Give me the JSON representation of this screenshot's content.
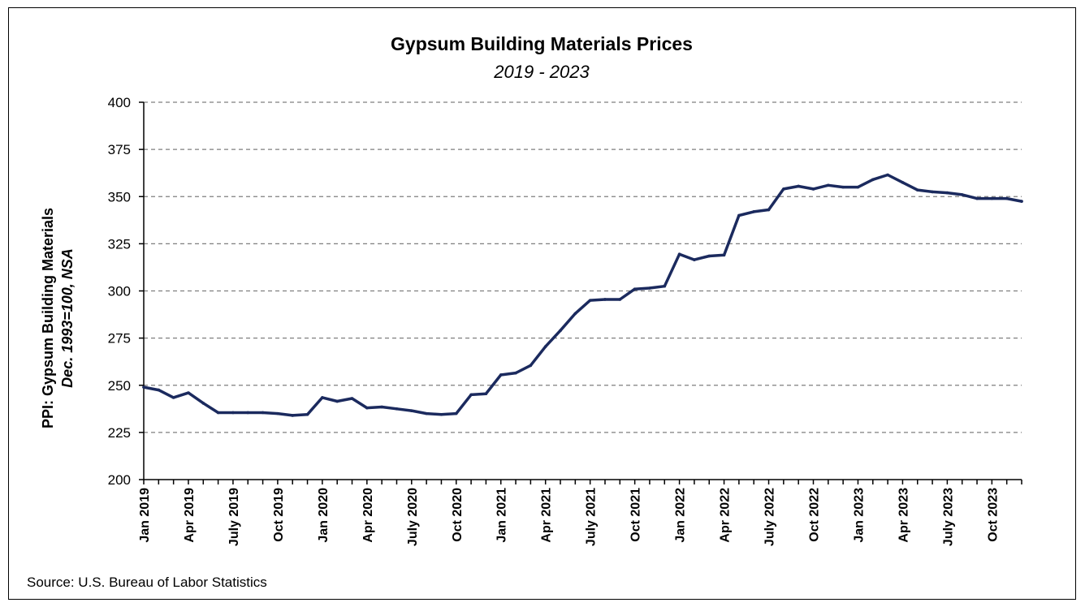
{
  "chart_data": {
    "type": "line",
    "title": "Gypsum Building Materials Prices",
    "subtitle": "2019 - 2023",
    "ylabel": "PPI: Gypsum Building Materials",
    "ylabel_sub": "Dec. 1993=100, NSA",
    "source": "Source: U.S. Bureau of Labor Statistics",
    "ylim": [
      200,
      400
    ],
    "yticks": [
      200,
      225,
      250,
      275,
      300,
      325,
      350,
      375,
      400
    ],
    "grid": true,
    "line_color": "#1b2a5e",
    "x_labels": [
      "Jan 2019",
      "Apr 2019",
      "July 2019",
      "Oct 2019",
      "Jan 2020",
      "Apr 2020",
      "July 2020",
      "Oct 2020",
      "Jan 2021",
      "Apr 2021",
      "July 2021",
      "Oct 2021",
      "Jan 2022",
      "Apr 2022",
      "July 2022",
      "Oct 2022",
      "Jan 2023",
      "Apr 2023",
      "July 2023",
      "Oct 2023"
    ],
    "x_label_every": 3,
    "series": [
      {
        "values": [
          249,
          247.5,
          243.5,
          246,
          240.5,
          235.5,
          235.5,
          235.5,
          235.5,
          235,
          234,
          234.5,
          243.5,
          241.5,
          243,
          238,
          238.5,
          237.5,
          236.5,
          235,
          234.5,
          235,
          245,
          245.5,
          255.5,
          256.5,
          260.5,
          270.5,
          279,
          288,
          295,
          295.5,
          295.5,
          301,
          301.5,
          302.5,
          319.5,
          316.5,
          318.5,
          319,
          340,
          342,
          343,
          354,
          355.5,
          354,
          356,
          355,
          355,
          359,
          361.5,
          357.5,
          353.5,
          352.5,
          352,
          351,
          349,
          349,
          349,
          347.5
        ]
      }
    ]
  }
}
